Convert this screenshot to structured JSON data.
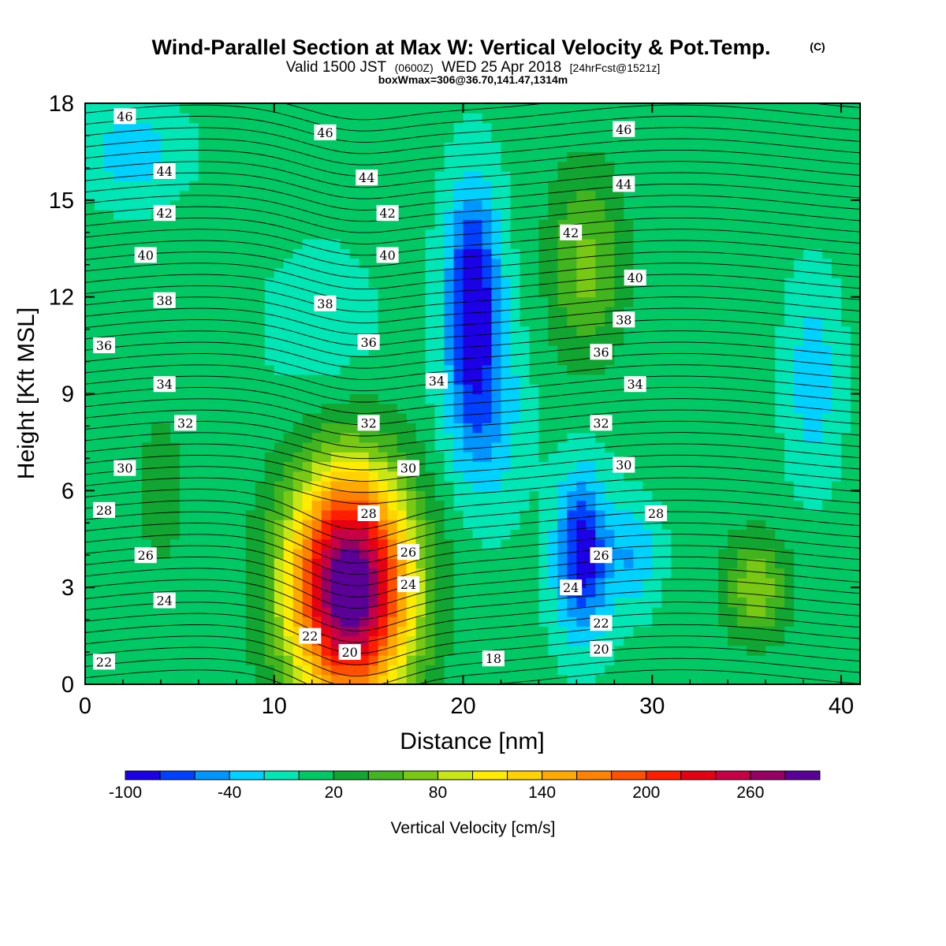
{
  "title": {
    "main": "Wind-Parallel Section at Max W: Vertical Velocity & Pot.Temp.",
    "mark": "(C)",
    "valid_a": "Valid 1500 JST",
    "valid_z": "(0600Z)",
    "valid_b": "WED 25 Apr 2018",
    "fcst": "[24hrFcst@1521z]",
    "box": "boxWmax=306@36.70,141.47,1314m"
  },
  "colors": {
    "levels": [
      "#1c00e6",
      "#0041ff",
      "#0096ff",
      "#00d2ff",
      "#00e6b4",
      "#00c864",
      "#11a532",
      "#42b41e",
      "#78c814",
      "#c8e614",
      "#ffeb00",
      "#ffd200",
      "#ffaa00",
      "#ff8200",
      "#ff5000",
      "#ff1e00",
      "#e60014",
      "#c80046",
      "#960064",
      "#5a0096"
    ]
  },
  "chart_data": {
    "type": "heatmap",
    "xlabel": "Distance [nm]",
    "ylabel": "Height [Kft MSL]",
    "xlim": [
      0,
      41
    ],
    "ylim": [
      0,
      18
    ],
    "xticks": [
      "0",
      "10",
      "20",
      "30",
      "40"
    ],
    "yticks": [
      "0",
      "3",
      "6",
      "9",
      "12",
      "15",
      "18"
    ],
    "colorbar": {
      "title": "Vertical Velocity [cm/s]",
      "min": -100,
      "max": 300,
      "step": 20,
      "labels": [
        "-100",
        "-40",
        "20",
        "80",
        "140",
        "200",
        "260"
      ]
    },
    "field_features": [
      {
        "x": 14.0,
        "y": 3.0,
        "w": 306,
        "sx": 3.2,
        "sy": 3.6
      },
      {
        "x": 12.5,
        "y": 11.0,
        "w": -20,
        "sx": 3.0,
        "sy": 2.5
      },
      {
        "x": 20.5,
        "y": 12.3,
        "w": -100,
        "sx": 1.4,
        "sy": 3.2
      },
      {
        "x": 21.0,
        "y": 8.5,
        "w": -55,
        "sx": 2.0,
        "sy": 3.0
      },
      {
        "x": 26.3,
        "y": 4.0,
        "w": -100,
        "sx": 1.4,
        "sy": 2.5
      },
      {
        "x": 29.0,
        "y": 4.0,
        "w": -45,
        "sx": 1.3,
        "sy": 1.6
      },
      {
        "x": 26.5,
        "y": 13.0,
        "w": 60,
        "sx": 2.0,
        "sy": 3.0
      },
      {
        "x": 35.5,
        "y": 3.0,
        "w": 70,
        "sx": 1.7,
        "sy": 1.6
      },
      {
        "x": 38.5,
        "y": 9.5,
        "w": -40,
        "sx": 1.4,
        "sy": 3.0
      },
      {
        "x": 2.5,
        "y": 16.5,
        "w": -40,
        "sx": 2.6,
        "sy": 1.5
      },
      {
        "x": 4.0,
        "y": 6.0,
        "w": 30,
        "sx": 1.2,
        "sy": 2.5
      }
    ],
    "theta_contours": [
      {
        "value": "46",
        "labels": [
          [
            2.1,
            17.6
          ],
          [
            12.7,
            17.1
          ],
          [
            28.5,
            17.2
          ]
        ]
      },
      {
        "value": "44",
        "labels": [
          [
            4.2,
            15.9
          ],
          [
            14.9,
            15.7
          ],
          [
            28.5,
            15.5
          ]
        ]
      },
      {
        "value": "42",
        "labels": [
          [
            4.2,
            14.6
          ],
          [
            16.0,
            14.6
          ],
          [
            25.7,
            14.0
          ]
        ]
      },
      {
        "value": "40",
        "labels": [
          [
            3.2,
            13.3
          ],
          [
            16.0,
            13.3
          ],
          [
            29.1,
            12.6
          ]
        ]
      },
      {
        "value": "38",
        "labels": [
          [
            4.2,
            11.9
          ],
          [
            12.7,
            11.8
          ],
          [
            28.5,
            11.3
          ]
        ]
      },
      {
        "value": "36",
        "labels": [
          [
            1.0,
            10.5
          ],
          [
            15.0,
            10.6
          ],
          [
            27.3,
            10.3
          ]
        ]
      },
      {
        "value": "34",
        "labels": [
          [
            4.2,
            9.3
          ],
          [
            18.6,
            9.4
          ],
          [
            29.1,
            9.3
          ]
        ]
      },
      {
        "value": "32",
        "labels": [
          [
            5.3,
            8.1
          ],
          [
            15.0,
            8.1
          ],
          [
            27.3,
            8.1
          ]
        ]
      },
      {
        "value": "30",
        "labels": [
          [
            2.1,
            6.7
          ],
          [
            17.1,
            6.7
          ],
          [
            28.5,
            6.8
          ]
        ]
      },
      {
        "value": "28",
        "labels": [
          [
            1.0,
            5.4
          ],
          [
            15.0,
            5.3
          ],
          [
            30.2,
            5.3
          ]
        ]
      },
      {
        "value": "26",
        "labels": [
          [
            3.2,
            4.0
          ],
          [
            17.1,
            4.1
          ],
          [
            27.3,
            4.0
          ]
        ]
      },
      {
        "value": "24",
        "labels": [
          [
            4.2,
            2.6
          ],
          [
            17.1,
            3.1
          ],
          [
            25.7,
            3.0
          ]
        ]
      },
      {
        "value": "22",
        "labels": [
          [
            1.0,
            0.7
          ],
          [
            11.9,
            1.5
          ],
          [
            27.3,
            1.9
          ]
        ]
      },
      {
        "value": "20",
        "labels": [
          [
            14.0,
            1.0
          ],
          [
            27.3,
            1.1
          ]
        ]
      },
      {
        "value": "18",
        "labels": [
          [
            21.6,
            0.8
          ]
        ]
      }
    ]
  }
}
